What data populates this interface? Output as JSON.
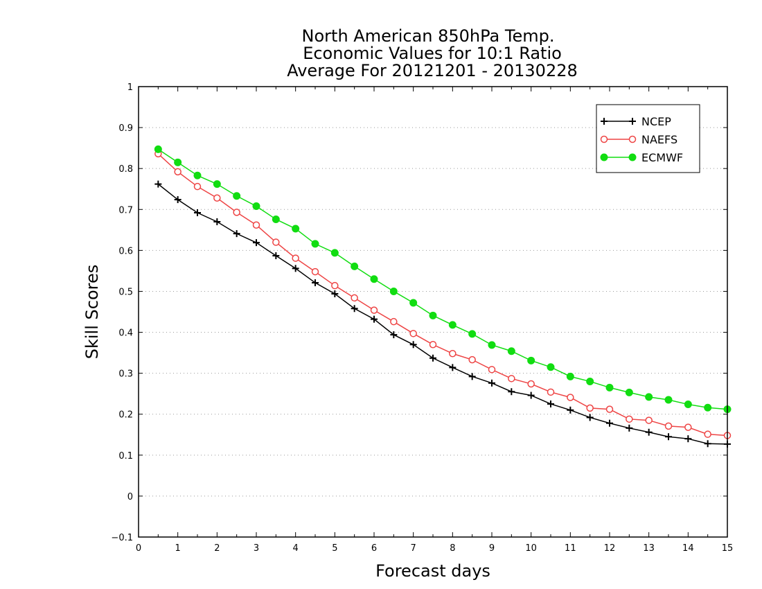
{
  "chart_data": {
    "type": "line",
    "title": [
      "North American 850hPa Temp.",
      "Economic Values for 10:1 Ratio",
      "Average For 20121201 - 20130228"
    ],
    "xlabel": "Forecast days",
    "ylabel": "Skill Scores",
    "xlim": [
      0,
      15
    ],
    "ylim": [
      -0.1,
      1
    ],
    "xticks": [
      "0",
      "1",
      "2",
      "3",
      "4",
      "5",
      "6",
      "7",
      "8",
      "9",
      "10",
      "11",
      "12",
      "13",
      "14",
      "15"
    ],
    "yticks": [
      "−0.1",
      "0",
      "0.1",
      "0.2",
      "0.3",
      "0.4",
      "0.5",
      "0.6",
      "0.7",
      "0.8",
      "0.9",
      "1"
    ],
    "ytick_values": [
      -0.1,
      0,
      0.1,
      0.2,
      0.3,
      0.4,
      0.5,
      0.6,
      0.7,
      0.8,
      0.9,
      1
    ],
    "grid": "horizontal-dotted",
    "legend_position": "top-right",
    "x": [
      0.5,
      1,
      1.5,
      2,
      2.5,
      3,
      3.5,
      4,
      4.5,
      5,
      5.5,
      6,
      6.5,
      7,
      7.5,
      8,
      8.5,
      9,
      9.5,
      10,
      10.5,
      11,
      11.5,
      12,
      12.5,
      13,
      13.5,
      14,
      14.5,
      15
    ],
    "series": [
      {
        "name": "NCEP",
        "color": "#000000",
        "marker": "plus",
        "values": [
          0.762,
          0.724,
          0.692,
          0.67,
          0.641,
          0.619,
          0.587,
          0.556,
          0.521,
          0.494,
          0.458,
          0.432,
          0.394,
          0.37,
          0.337,
          0.314,
          0.292,
          0.276,
          0.255,
          0.246,
          0.225,
          0.21,
          0.192,
          0.178,
          0.166,
          0.156,
          0.145,
          0.14,
          0.128,
          0.127
        ]
      },
      {
        "name": "NAEFS",
        "color": "#ee4444",
        "marker": "open-circle",
        "values": [
          0.836,
          0.792,
          0.756,
          0.728,
          0.693,
          0.662,
          0.62,
          0.581,
          0.548,
          0.514,
          0.484,
          0.454,
          0.426,
          0.397,
          0.37,
          0.348,
          0.333,
          0.309,
          0.287,
          0.274,
          0.254,
          0.241,
          0.215,
          0.212,
          0.188,
          0.185,
          0.171,
          0.168,
          0.151,
          0.148
        ]
      },
      {
        "name": "ECMWF",
        "color": "#11dd11",
        "marker": "filled-circle",
        "values": [
          0.847,
          0.815,
          0.783,
          0.762,
          0.733,
          0.708,
          0.676,
          0.653,
          0.616,
          0.594,
          0.561,
          0.53,
          0.5,
          0.472,
          0.441,
          0.418,
          0.396,
          0.369,
          0.354,
          0.331,
          0.315,
          0.292,
          0.28,
          0.265,
          0.253,
          0.242,
          0.235,
          0.224,
          0.216,
          0.212
        ]
      }
    ]
  }
}
